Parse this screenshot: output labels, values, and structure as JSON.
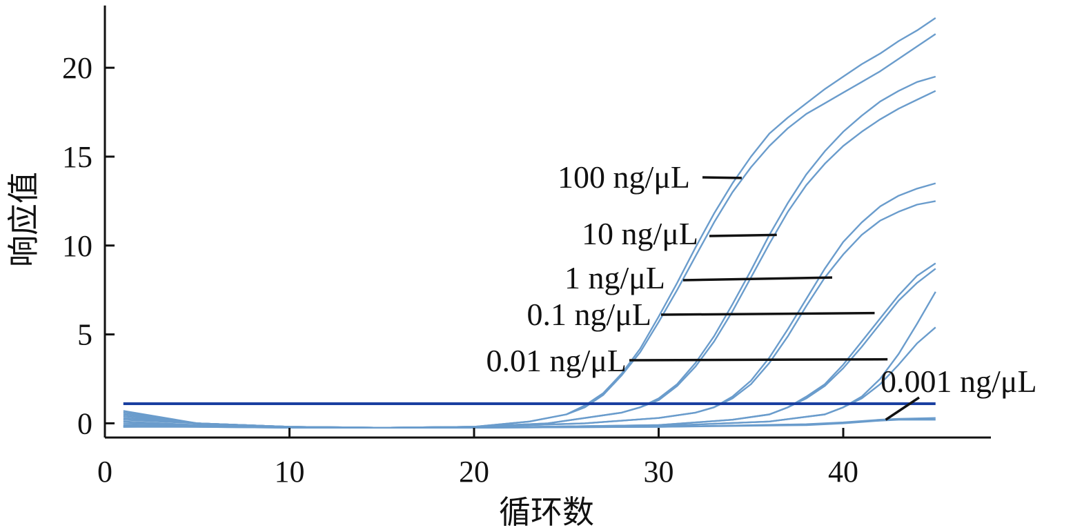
{
  "chart_data": {
    "type": "line",
    "xlabel": "循环数",
    "ylabel": "响应值",
    "xlim": [
      0,
      48
    ],
    "ylim": [
      -0.8,
      23.5
    ],
    "x_ticks": [
      0,
      10,
      20,
      30,
      40
    ],
    "y_ticks": [
      0,
      5,
      10,
      15,
      20
    ],
    "grid": false,
    "threshold": {
      "value": 1.1,
      "color": "#1a3fa0"
    },
    "curve_color": "#6a9ccc",
    "series": [
      {
        "name": "100 ng/μL",
        "values": [
          [
            1,
            0.7
          ],
          [
            5,
            0.0
          ],
          [
            10,
            -0.2
          ],
          [
            15,
            -0.25
          ],
          [
            20,
            -0.2
          ],
          [
            23,
            0.1
          ],
          [
            25,
            0.5
          ],
          [
            26,
            0.9
          ],
          [
            27,
            1.6
          ],
          [
            28,
            2.7
          ],
          [
            29,
            4.0
          ],
          [
            30,
            5.7
          ],
          [
            31,
            7.5
          ],
          [
            32,
            9.4
          ],
          [
            33,
            11.3
          ],
          [
            34,
            13.0
          ],
          [
            35,
            14.4
          ],
          [
            36,
            15.6
          ],
          [
            37,
            16.6
          ],
          [
            38,
            17.4
          ],
          [
            39,
            18.0
          ],
          [
            40,
            18.6
          ],
          [
            41,
            19.2
          ],
          [
            42,
            19.8
          ],
          [
            43,
            20.5
          ],
          [
            44,
            21.2
          ],
          [
            45,
            21.9
          ]
        ]
      },
      {
        "name": "100 ng/μL",
        "values": [
          [
            1,
            0.5
          ],
          [
            5,
            0.0
          ],
          [
            10,
            -0.2
          ],
          [
            15,
            -0.25
          ],
          [
            20,
            -0.2
          ],
          [
            23,
            0.1
          ],
          [
            25,
            0.5
          ],
          [
            26,
            1.0
          ],
          [
            27,
            1.7
          ],
          [
            28,
            2.8
          ],
          [
            29,
            4.2
          ],
          [
            30,
            6.0
          ],
          [
            31,
            7.9
          ],
          [
            32,
            9.9
          ],
          [
            33,
            11.8
          ],
          [
            34,
            13.5
          ],
          [
            35,
            15.0
          ],
          [
            36,
            16.3
          ],
          [
            37,
            17.2
          ],
          [
            38,
            18.0
          ],
          [
            39,
            18.8
          ],
          [
            40,
            19.5
          ],
          [
            41,
            20.2
          ],
          [
            42,
            20.8
          ],
          [
            43,
            21.5
          ],
          [
            44,
            22.1
          ],
          [
            45,
            22.8
          ]
        ]
      },
      {
        "name": "10 ng/μL",
        "values": [
          [
            1,
            0.6
          ],
          [
            5,
            0.0
          ],
          [
            10,
            -0.2
          ],
          [
            15,
            -0.25
          ],
          [
            20,
            -0.2
          ],
          [
            24,
            0.0
          ],
          [
            26,
            0.3
          ],
          [
            28,
            0.6
          ],
          [
            29,
            0.9
          ],
          [
            30,
            1.3
          ],
          [
            31,
            2.1
          ],
          [
            32,
            3.2
          ],
          [
            33,
            4.6
          ],
          [
            34,
            6.3
          ],
          [
            35,
            8.2
          ],
          [
            36,
            10.1
          ],
          [
            37,
            11.9
          ],
          [
            38,
            13.4
          ],
          [
            39,
            14.6
          ],
          [
            40,
            15.6
          ],
          [
            41,
            16.4
          ],
          [
            42,
            17.1
          ],
          [
            43,
            17.7
          ],
          [
            44,
            18.2
          ],
          [
            45,
            18.7
          ]
        ]
      },
      {
        "name": "10 ng/μL",
        "values": [
          [
            1,
            0.4
          ],
          [
            5,
            0.0
          ],
          [
            10,
            -0.2
          ],
          [
            15,
            -0.25
          ],
          [
            20,
            -0.2
          ],
          [
            24,
            0.0
          ],
          [
            26,
            0.3
          ],
          [
            28,
            0.6
          ],
          [
            29,
            0.9
          ],
          [
            30,
            1.4
          ],
          [
            31,
            2.2
          ],
          [
            32,
            3.4
          ],
          [
            33,
            4.9
          ],
          [
            34,
            6.7
          ],
          [
            35,
            8.6
          ],
          [
            36,
            10.6
          ],
          [
            37,
            12.4
          ],
          [
            38,
            14.0
          ],
          [
            39,
            15.3
          ],
          [
            40,
            16.4
          ],
          [
            41,
            17.3
          ],
          [
            42,
            18.1
          ],
          [
            43,
            18.7
          ],
          [
            44,
            19.2
          ],
          [
            45,
            19.5
          ]
        ]
      },
      {
        "name": "1 ng/μL",
        "values": [
          [
            1,
            0.3
          ],
          [
            5,
            0.0
          ],
          [
            10,
            -0.2
          ],
          [
            15,
            -0.25
          ],
          [
            20,
            -0.2
          ],
          [
            26,
            0.0
          ],
          [
            30,
            0.3
          ],
          [
            32,
            0.6
          ],
          [
            33,
            0.9
          ],
          [
            34,
            1.4
          ],
          [
            35,
            2.2
          ],
          [
            36,
            3.4
          ],
          [
            37,
            4.9
          ],
          [
            38,
            6.6
          ],
          [
            39,
            8.2
          ],
          [
            40,
            9.5
          ],
          [
            41,
            10.6
          ],
          [
            42,
            11.4
          ],
          [
            43,
            11.9
          ],
          [
            44,
            12.3
          ],
          [
            45,
            12.5
          ]
        ]
      },
      {
        "name": "1 ng/μL",
        "values": [
          [
            1,
            0.2
          ],
          [
            5,
            0.0
          ],
          [
            10,
            -0.2
          ],
          [
            15,
            -0.25
          ],
          [
            20,
            -0.2
          ],
          [
            26,
            0.0
          ],
          [
            30,
            0.3
          ],
          [
            32,
            0.6
          ],
          [
            33,
            0.9
          ],
          [
            34,
            1.5
          ],
          [
            35,
            2.4
          ],
          [
            36,
            3.7
          ],
          [
            37,
            5.3
          ],
          [
            38,
            7.0
          ],
          [
            39,
            8.7
          ],
          [
            40,
            10.2
          ],
          [
            41,
            11.3
          ],
          [
            42,
            12.2
          ],
          [
            43,
            12.8
          ],
          [
            44,
            13.2
          ],
          [
            45,
            13.5
          ]
        ]
      },
      {
        "name": "0.1 ng/μL",
        "values": [
          [
            1,
            0.1
          ],
          [
            5,
            -0.1
          ],
          [
            10,
            -0.25
          ],
          [
            20,
            -0.25
          ],
          [
            30,
            -0.1
          ],
          [
            34,
            0.2
          ],
          [
            36,
            0.5
          ],
          [
            37,
            0.9
          ],
          [
            38,
            1.4
          ],
          [
            39,
            2.1
          ],
          [
            40,
            3.1
          ],
          [
            41,
            4.3
          ],
          [
            42,
            5.6
          ],
          [
            43,
            6.9
          ],
          [
            44,
            7.9
          ],
          [
            45,
            8.7
          ]
        ]
      },
      {
        "name": "0.1 ng/μL",
        "values": [
          [
            1,
            0.0
          ],
          [
            5,
            -0.1
          ],
          [
            10,
            -0.25
          ],
          [
            20,
            -0.25
          ],
          [
            30,
            -0.1
          ],
          [
            34,
            0.2
          ],
          [
            36,
            0.5
          ],
          [
            37,
            0.9
          ],
          [
            38,
            1.5
          ],
          [
            39,
            2.2
          ],
          [
            40,
            3.3
          ],
          [
            41,
            4.6
          ],
          [
            42,
            5.9
          ],
          [
            43,
            7.2
          ],
          [
            44,
            8.3
          ],
          [
            45,
            9.0
          ]
        ]
      },
      {
        "name": "0.01 ng/μL",
        "values": [
          [
            1,
            -0.1
          ],
          [
            5,
            -0.15
          ],
          [
            10,
            -0.25
          ],
          [
            20,
            -0.25
          ],
          [
            30,
            -0.15
          ],
          [
            36,
            0.1
          ],
          [
            39,
            0.5
          ],
          [
            40,
            0.9
          ],
          [
            41,
            1.4
          ],
          [
            42,
            2.2
          ],
          [
            43,
            3.3
          ],
          [
            44,
            4.5
          ],
          [
            45,
            5.4
          ]
        ]
      },
      {
        "name": "0.01 ng/μL",
        "values": [
          [
            1,
            -0.2
          ],
          [
            5,
            -0.15
          ],
          [
            10,
            -0.25
          ],
          [
            20,
            -0.25
          ],
          [
            30,
            -0.15
          ],
          [
            36,
            0.1
          ],
          [
            39,
            0.5
          ],
          [
            40,
            0.9
          ],
          [
            41,
            1.5
          ],
          [
            42,
            2.5
          ],
          [
            43,
            3.9
          ],
          [
            44,
            5.6
          ],
          [
            45,
            7.4
          ]
        ]
      },
      {
        "name": "0.001 ng/μL",
        "values": [
          [
            1,
            -0.2
          ],
          [
            5,
            -0.2
          ],
          [
            10,
            -0.25
          ],
          [
            20,
            -0.25
          ],
          [
            30,
            -0.2
          ],
          [
            38,
            -0.1
          ],
          [
            40,
            0.0
          ],
          [
            42,
            0.15
          ],
          [
            43,
            0.2
          ],
          [
            45,
            0.2
          ]
        ]
      },
      {
        "name": "0.001 ng/μL",
        "values": [
          [
            1,
            -0.15
          ],
          [
            5,
            -0.2
          ],
          [
            10,
            -0.25
          ],
          [
            20,
            -0.25
          ],
          [
            30,
            -0.2
          ],
          [
            38,
            -0.05
          ],
          [
            40,
            0.05
          ],
          [
            42,
            0.2
          ],
          [
            43,
            0.25
          ],
          [
            45,
            0.3
          ]
        ]
      }
    ],
    "annotations": [
      {
        "text": "100 ng/μL",
        "target": [
          34.5,
          13.8
        ]
      },
      {
        "text": "10 ng/μL",
        "target": [
          36.4,
          10.6
        ]
      },
      {
        "text": "1 ng/μL",
        "target": [
          39.4,
          8.2
        ]
      },
      {
        "text": "0.1 ng/μL",
        "target": [
          41.7,
          6.2
        ]
      },
      {
        "text": "0.01 ng/μL",
        "target": [
          42.4,
          3.6
        ]
      },
      {
        "text": "0.001 ng/μL",
        "target": [
          42.3,
          0.2
        ]
      }
    ]
  }
}
